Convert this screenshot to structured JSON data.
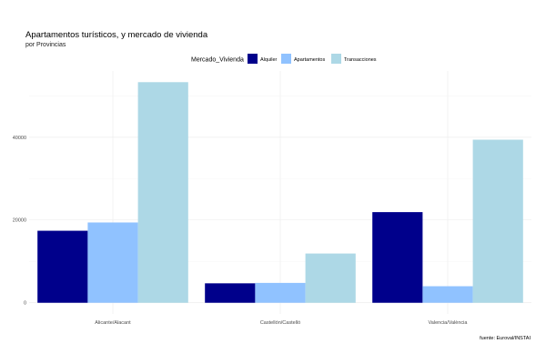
{
  "chart_data": {
    "type": "bar",
    "title": "Apartamentos turísticos, y mercado de vivienda",
    "subtitle": "por Provincias",
    "caption": "fuente: Euroval/INSTAI",
    "legend": {
      "title": "Mercado_Vivienda",
      "position": "top"
    },
    "categories": [
      "Alicante/Alacant",
      "Castellón/Castelló",
      "Valencia/València"
    ],
    "series": [
      {
        "name": "Alquiler",
        "color": "#00008b",
        "values": [
          17400,
          4700,
          21900
        ]
      },
      {
        "name": "Apartamentos",
        "color": "#90c2ff",
        "values": [
          19400,
          4800,
          4000
        ]
      },
      {
        "name": "Transacciones",
        "color": "#add8e6",
        "values": [
          53300,
          11900,
          39400
        ]
      }
    ],
    "y_ticks": [
      0,
      20000,
      40000
    ],
    "y_tick_labels": [
      "0",
      "20000",
      "40000"
    ],
    "ylim": [
      -2700,
      56000
    ],
    "grid": true
  }
}
